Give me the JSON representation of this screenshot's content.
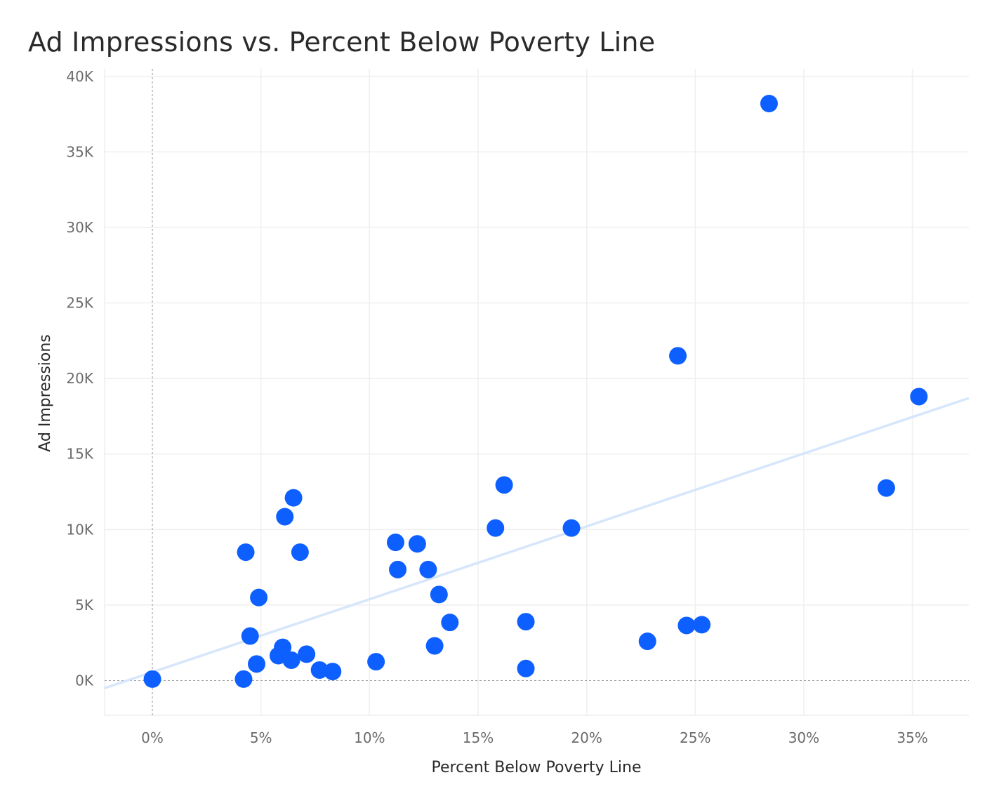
{
  "chart_data": {
    "type": "scatter",
    "title": "Ad Impressions vs. Percent Below Poverty Line",
    "xlabel": "Percent Below Poverty Line",
    "ylabel": "Ad Impressions",
    "xlim": [
      -0.022,
      0.376
    ],
    "ylim": [
      -2300,
      40500
    ],
    "x_ticks": [
      0,
      0.05,
      0.1,
      0.15,
      0.2,
      0.25,
      0.3,
      0.35
    ],
    "x_tick_labels": [
      "0%",
      "5%",
      "10%",
      "15%",
      "20%",
      "25%",
      "30%",
      "35%"
    ],
    "y_ticks": [
      0,
      5000,
      10000,
      15000,
      20000,
      25000,
      30000,
      35000,
      40000
    ],
    "y_tick_labels": [
      "0K",
      "5K",
      "10K",
      "15K",
      "20K",
      "25K",
      "30K",
      "35K",
      "40K"
    ],
    "grid": true,
    "point_color": "#0d60ff",
    "trendline_color": "#d6e6fb",
    "trendline": {
      "x": [
        -0.022,
        0.376
      ],
      "y": [
        -500,
        18700
      ]
    },
    "points": [
      {
        "x": 0.0,
        "y": 100
      },
      {
        "x": 0.042,
        "y": 100
      },
      {
        "x": 0.043,
        "y": 8500
      },
      {
        "x": 0.045,
        "y": 2950
      },
      {
        "x": 0.048,
        "y": 1100
      },
      {
        "x": 0.049,
        "y": 5500
      },
      {
        "x": 0.058,
        "y": 1650
      },
      {
        "x": 0.06,
        "y": 2200
      },
      {
        "x": 0.061,
        "y": 10850
      },
      {
        "x": 0.064,
        "y": 1350
      },
      {
        "x": 0.065,
        "y": 12100
      },
      {
        "x": 0.068,
        "y": 8500
      },
      {
        "x": 0.071,
        "y": 1750
      },
      {
        "x": 0.077,
        "y": 700
      },
      {
        "x": 0.083,
        "y": 600
      },
      {
        "x": 0.103,
        "y": 1250
      },
      {
        "x": 0.112,
        "y": 9150
      },
      {
        "x": 0.113,
        "y": 7350
      },
      {
        "x": 0.122,
        "y": 9050
      },
      {
        "x": 0.127,
        "y": 7350
      },
      {
        "x": 0.13,
        "y": 2300
      },
      {
        "x": 0.132,
        "y": 5700
      },
      {
        "x": 0.137,
        "y": 3850
      },
      {
        "x": 0.158,
        "y": 10100
      },
      {
        "x": 0.162,
        "y": 12950
      },
      {
        "x": 0.172,
        "y": 3900
      },
      {
        "x": 0.172,
        "y": 800
      },
      {
        "x": 0.193,
        "y": 10100
      },
      {
        "x": 0.228,
        "y": 2600
      },
      {
        "x": 0.242,
        "y": 21500
      },
      {
        "x": 0.246,
        "y": 3650
      },
      {
        "x": 0.253,
        "y": 3700
      },
      {
        "x": 0.284,
        "y": 38200
      },
      {
        "x": 0.338,
        "y": 12750
      },
      {
        "x": 0.353,
        "y": 18800
      }
    ]
  }
}
